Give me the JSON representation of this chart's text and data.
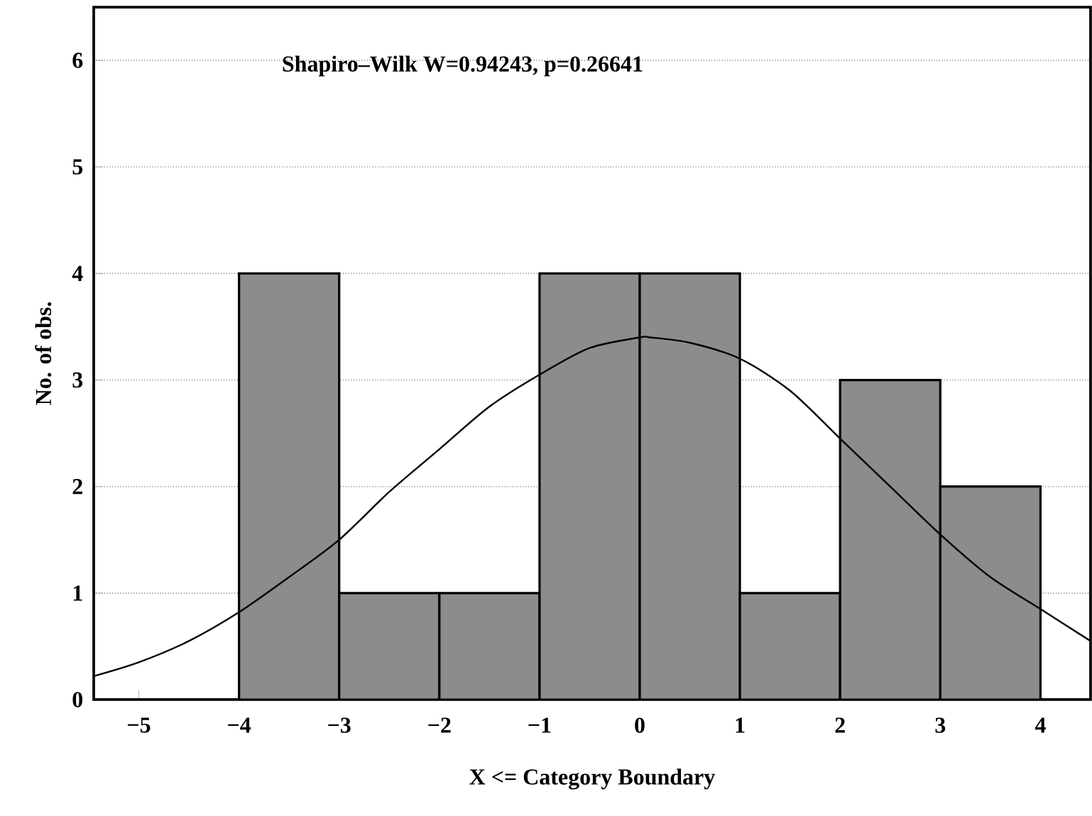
{
  "chart_data": {
    "type": "histogram",
    "xlabel": "X <= Category Boundary",
    "ylabel": "No. of obs.",
    "annotations": [
      "Shapiro–Wilk W=0.94243, p=0.26641"
    ],
    "xlim": [
      -5.45,
      4.5
    ],
    "ylim": [
      0,
      6.5
    ],
    "xticks": [
      {
        "value": -5,
        "label": "−5"
      },
      {
        "value": -4,
        "label": "−4"
      },
      {
        "value": -3,
        "label": "−3"
      },
      {
        "value": -2,
        "label": "−2"
      },
      {
        "value": -1,
        "label": "−1"
      },
      0,
      1,
      2,
      3,
      4
    ],
    "yticks": [
      0,
      1,
      2,
      3,
      4,
      5,
      6
    ],
    "grid": "y",
    "series": [
      {
        "color": "#8c8c8c",
        "bins": [
          -4,
          -3,
          -2,
          -1,
          0,
          1,
          2,
          3,
          4
        ],
        "values": [
          4,
          1,
          1,
          4,
          4,
          1,
          3,
          2
        ]
      },
      {
        "type": "line",
        "color": "#000000",
        "x": [
          -5.45,
          -5,
          -4.5,
          -4,
          -3.5,
          -3,
          -2.5,
          -2,
          -1.5,
          -1,
          -0.5,
          0,
          0.1,
          0.5,
          1,
          1.5,
          2,
          2.5,
          3,
          3.5,
          4,
          4.5
        ],
        "values": [
          0.22,
          0.35,
          0.55,
          0.82,
          1.15,
          1.5,
          1.95,
          2.35,
          2.75,
          3.05,
          3.3,
          3.4,
          3.4,
          3.35,
          3.2,
          2.9,
          2.45,
          2.0,
          1.55,
          1.15,
          0.85,
          0.55
        ]
      }
    ]
  }
}
